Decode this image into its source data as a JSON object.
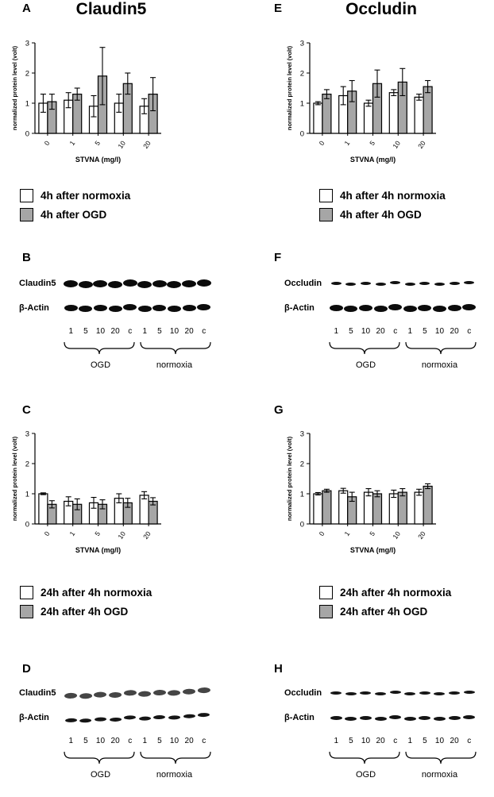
{
  "figure": {
    "left_title": "Claudin5",
    "right_title": "Occludin"
  },
  "panel_letters": {
    "A": "A",
    "B": "B",
    "C": "C",
    "D": "D",
    "E": "E",
    "F": "F",
    "G": "G",
    "H": "H"
  },
  "chart_data": [
    {
      "panel": "A",
      "type": "bar",
      "categories": [
        "0",
        "1",
        "5",
        "10",
        "20"
      ],
      "series": [
        {
          "name": "4h after normoxia",
          "color": "#ffffff",
          "values": [
            1.0,
            1.1,
            0.9,
            1.0,
            0.9
          ],
          "errors": [
            0.3,
            0.25,
            0.35,
            0.3,
            0.25
          ]
        },
        {
          "name": "4h after OGD",
          "color": "#a6a6a6",
          "values": [
            1.05,
            1.3,
            1.9,
            1.65,
            1.3
          ],
          "errors": [
            0.25,
            0.2,
            0.95,
            0.35,
            0.55
          ]
        }
      ],
      "xlabel": "STVNA (mg/l)",
      "ylabel": "normalized protein level (volt)",
      "ylim": [
        0,
        3
      ],
      "yticks": [
        0,
        1,
        2,
        3
      ],
      "grid": false,
      "legend_position": "below"
    },
    {
      "panel": "E",
      "type": "bar",
      "categories": [
        "0",
        "1",
        "5",
        "10",
        "20"
      ],
      "series": [
        {
          "name": "4h after 4h normoxia",
          "color": "#ffffff",
          "values": [
            1.0,
            1.25,
            1.0,
            1.35,
            1.2
          ],
          "errors": [
            0.05,
            0.3,
            0.1,
            0.1,
            0.1
          ]
        },
        {
          "name": "4h after 4h OGD",
          "color": "#a6a6a6",
          "values": [
            1.3,
            1.4,
            1.65,
            1.7,
            1.55
          ],
          "errors": [
            0.15,
            0.35,
            0.45,
            0.45,
            0.2
          ]
        }
      ],
      "xlabel": "STVNA (mg/l)",
      "ylabel": "normalized protein level (volt)",
      "ylim": [
        0,
        3
      ],
      "yticks": [
        0,
        1,
        2,
        3
      ],
      "grid": false,
      "legend_position": "below"
    },
    {
      "panel": "C",
      "type": "bar",
      "categories": [
        "0",
        "1",
        "5",
        "10",
        "20"
      ],
      "series": [
        {
          "name": "24h after 4h normoxia",
          "color": "#ffffff",
          "values": [
            1.0,
            0.75,
            0.7,
            0.85,
            0.95
          ],
          "errors": [
            0.03,
            0.15,
            0.18,
            0.15,
            0.12
          ]
        },
        {
          "name": "24h after 4h OGD",
          "color": "#a6a6a6",
          "values": [
            0.65,
            0.65,
            0.65,
            0.7,
            0.75
          ],
          "errors": [
            0.12,
            0.18,
            0.15,
            0.15,
            0.12
          ]
        }
      ],
      "xlabel": "STVNA (mg/l)",
      "ylabel": "normalized protein level (volt)",
      "ylim": [
        0,
        3
      ],
      "yticks": [
        0,
        1,
        2,
        3
      ],
      "grid": false,
      "legend_position": "below"
    },
    {
      "panel": "G",
      "type": "bar",
      "categories": [
        "0",
        "1",
        "5",
        "10",
        "20"
      ],
      "series": [
        {
          "name": "24h after 4h normoxia",
          "color": "#ffffff",
          "values": [
            1.0,
            1.1,
            1.05,
            1.0,
            1.05
          ],
          "errors": [
            0.04,
            0.08,
            0.12,
            0.12,
            0.1
          ]
        },
        {
          "name": "24h after 4h OGD",
          "color": "#a6a6a6",
          "values": [
            1.1,
            0.9,
            1.0,
            1.05,
            1.25
          ],
          "errors": [
            0.05,
            0.15,
            0.1,
            0.12,
            0.08
          ]
        }
      ],
      "xlabel": "STVNA (mg/l)",
      "ylabel": "normalized protein level (volt)",
      "ylim": [
        0,
        3
      ],
      "yticks": [
        0,
        1,
        2,
        3
      ],
      "grid": false,
      "legend_position": "below"
    }
  ],
  "blots": {
    "B": {
      "protein": "Claudin5",
      "actin": "β-Actin",
      "lanes": [
        "1",
        "5",
        "10",
        "20",
        "c",
        "1",
        "5",
        "10",
        "20",
        "c"
      ],
      "groups": [
        "OGD",
        "normoxia"
      ]
    },
    "F": {
      "protein": "Occludin",
      "actin": "β-Actin",
      "lanes": [
        "1",
        "5",
        "10",
        "20",
        "c",
        "1",
        "5",
        "10",
        "20",
        "c"
      ],
      "groups": [
        "OGD",
        "normoxia"
      ]
    },
    "D": {
      "protein": "Claudin5",
      "actin": "β-Actin",
      "lanes": [
        "1",
        "5",
        "10",
        "20",
        "c",
        "1",
        "5",
        "10",
        "20",
        "c"
      ],
      "groups": [
        "OGD",
        "normoxia"
      ]
    },
    "H": {
      "protein": "Occludin",
      "actin": "β-Actin",
      "lanes": [
        "1",
        "5",
        "10",
        "20",
        "c",
        "1",
        "5",
        "10",
        "20",
        "c"
      ],
      "groups": [
        "OGD",
        "normoxia"
      ]
    }
  }
}
